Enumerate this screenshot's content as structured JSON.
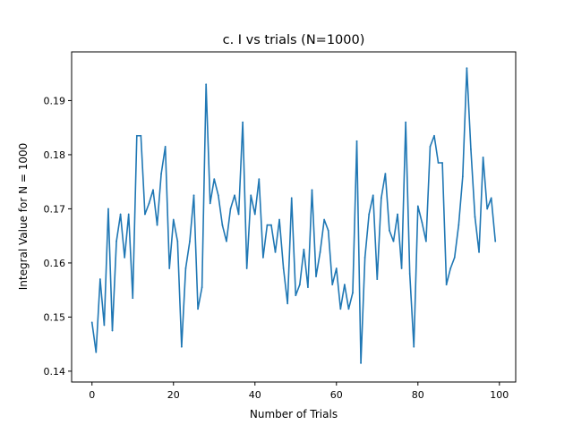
{
  "chart_data": {
    "type": "line",
    "title": "c. I vs trials (N=1000)",
    "xlabel": "Number of Trials",
    "ylabel": "Integral Value for N = 1000",
    "xlim": [
      -5,
      104
    ],
    "ylim": [
      0.138,
      0.199
    ],
    "xticks": [
      0,
      20,
      40,
      60,
      80,
      100
    ],
    "yticks": [
      0.14,
      0.15,
      0.16,
      0.17,
      0.18,
      0.19
    ],
    "xtick_labels": [
      "0",
      "20",
      "40",
      "60",
      "80",
      "100"
    ],
    "ytick_labels": [
      "0.14",
      "0.15",
      "0.16",
      "0.17",
      "0.18",
      "0.19"
    ],
    "grid": false,
    "series": [
      {
        "color": "#1f77b4",
        "x": [
          0,
          1,
          2,
          3,
          4,
          5,
          6,
          7,
          8,
          9,
          10,
          11,
          12,
          13,
          14,
          15,
          16,
          17,
          18,
          19,
          20,
          21,
          22,
          23,
          24,
          25,
          26,
          27,
          28,
          29,
          30,
          31,
          32,
          33,
          34,
          35,
          36,
          37,
          38,
          39,
          40,
          41,
          42,
          43,
          44,
          45,
          46,
          47,
          48,
          49,
          50,
          51,
          52,
          53,
          54,
          55,
          56,
          57,
          58,
          59,
          60,
          61,
          62,
          63,
          64,
          65,
          66,
          67,
          68,
          69,
          70,
          71,
          72,
          73,
          74,
          75,
          76,
          77,
          78,
          79,
          80,
          81,
          82,
          83,
          84,
          85,
          86,
          87,
          88,
          89,
          90,
          91,
          92,
          93,
          94,
          95,
          96,
          97,
          98,
          99
        ],
        "values": [
          0.149,
          0.1435,
          0.157,
          0.1485,
          0.17,
          0.1475,
          0.164,
          0.169,
          0.161,
          0.169,
          0.1535,
          0.1835,
          0.1835,
          0.169,
          0.171,
          0.1735,
          0.167,
          0.1765,
          0.1815,
          0.159,
          0.168,
          0.164,
          0.1445,
          0.159,
          0.164,
          0.1725,
          0.1515,
          0.1555,
          0.193,
          0.171,
          0.1755,
          0.1725,
          0.167,
          0.164,
          0.17,
          0.1725,
          0.169,
          0.186,
          0.159,
          0.1725,
          0.169,
          0.1755,
          0.161,
          0.167,
          0.167,
          0.162,
          0.168,
          0.159,
          0.1525,
          0.172,
          0.154,
          0.156,
          0.1625,
          0.1555,
          0.1735,
          0.1575,
          0.162,
          0.168,
          0.166,
          0.156,
          0.159,
          0.1515,
          0.156,
          0.1515,
          0.1545,
          0.1825,
          0.1415,
          0.161,
          0.169,
          0.1725,
          0.157,
          0.172,
          0.1765,
          0.166,
          0.164,
          0.169,
          0.159,
          0.186,
          0.158,
          0.1445,
          0.1705,
          0.1675,
          0.164,
          0.1815,
          0.1835,
          0.1785,
          0.1785,
          0.156,
          0.159,
          0.161,
          0.167,
          0.176,
          0.196,
          0.181,
          0.1685,
          0.162,
          0.1795,
          0.17,
          0.172,
          0.164
        ]
      }
    ]
  }
}
